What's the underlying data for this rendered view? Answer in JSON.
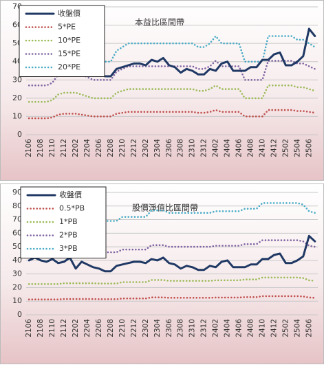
{
  "chart_data": [
    {
      "type": "line",
      "annotation": "本益比區間帶",
      "categories": [
        "2106",
        null,
        "2108",
        null,
        "2110",
        null,
        "2112",
        null,
        "2202",
        null,
        "2204",
        null,
        "2206",
        null,
        "2208",
        null,
        "2210",
        null,
        "2212",
        null,
        "2302",
        null,
        "2304",
        null,
        "2306",
        null,
        "2308",
        null,
        "2310",
        null,
        "2312",
        null,
        "2402",
        null,
        "2404",
        null,
        "2406",
        null,
        "2408",
        null,
        "2410",
        null,
        "2412",
        null,
        "2502",
        null,
        "2504",
        null,
        "2506",
        null
      ],
      "ylim": [
        0,
        70
      ],
      "yticks": [
        0,
        10,
        20,
        30,
        40,
        50,
        60,
        70
      ],
      "grid": true,
      "legend": "upper left",
      "series": [
        {
          "name": "收盤價",
          "color": "#1f3864",
          "linestyle": "solid",
          "values": [
            40,
            42,
            40,
            39,
            41,
            38,
            39,
            42,
            34,
            39,
            37,
            35,
            34,
            32,
            32,
            36,
            37,
            38,
            39,
            39,
            38,
            41,
            40,
            42,
            38,
            37,
            34,
            36,
            35,
            33,
            33,
            36,
            35,
            39,
            40,
            35,
            35,
            35,
            37,
            37,
            41,
            41,
            44,
            45,
            38,
            38,
            40,
            43,
            58,
            54
          ]
        },
        {
          "name": "5*PE",
          "color": "#c0504d",
          "linestyle": "dotted",
          "values": [
            9,
            9,
            9,
            9,
            9.5,
            11,
            11.5,
            11.5,
            11.5,
            11,
            10.5,
            10,
            10,
            10,
            10,
            11.5,
            12,
            12.5,
            12.5,
            12.5,
            12.5,
            12.5,
            12.5,
            12.5,
            12.5,
            12.5,
            12.5,
            12.5,
            12.5,
            12,
            12,
            12.5,
            13.5,
            12.5,
            12.5,
            12.5,
            12.5,
            10,
            10,
            10,
            10,
            13.5,
            13.5,
            13.5,
            13.5,
            13.5,
            13,
            13,
            12.5,
            12
          ]
        },
        {
          "name": "10*PE",
          "color": "#9bbb59",
          "linestyle": "dotted",
          "values": [
            18,
            18,
            18,
            18,
            19,
            22,
            23,
            23,
            23,
            22,
            21,
            20,
            20,
            20,
            20,
            23,
            24,
            25,
            25,
            25,
            25,
            25,
            25,
            25,
            25,
            25,
            25,
            25,
            25,
            24,
            24,
            25,
            27,
            25,
            25,
            25,
            25,
            20,
            20,
            20,
            20,
            27,
            27,
            27,
            27,
            27,
            26,
            26,
            25,
            24
          ]
        },
        {
          "name": "15*PE",
          "color": "#8064a2",
          "linestyle": "dotted",
          "values": [
            27,
            27,
            27,
            27,
            28.5,
            33,
            34.5,
            34.5,
            34.5,
            33,
            31.5,
            30,
            30,
            30,
            30,
            34.5,
            36,
            37.5,
            37.5,
            37.5,
            37.5,
            37.5,
            37.5,
            37.5,
            37.5,
            37.5,
            37.5,
            37.5,
            37.5,
            36,
            36,
            37.5,
            40.5,
            37.5,
            37.5,
            37.5,
            37.5,
            30,
            30,
            30,
            30,
            40.5,
            40.5,
            40.5,
            40.5,
            40.5,
            39,
            39,
            37.5,
            36
          ]
        },
        {
          "name": "20*PE",
          "color": "#4bacc6",
          "linestyle": "dotted",
          "values": [
            36,
            36,
            36,
            36,
            38,
            44,
            46,
            46,
            46,
            44,
            42,
            40,
            40,
            40,
            40,
            46,
            48,
            50,
            50,
            50,
            50,
            50,
            50,
            50,
            50,
            50,
            50,
            50,
            50,
            48,
            48,
            50,
            54,
            50,
            50,
            50,
            50,
            40,
            40,
            40,
            40,
            54,
            54,
            54,
            54,
            54,
            52,
            52,
            50,
            48
          ]
        }
      ]
    },
    {
      "type": "line",
      "annotation": "股價淨值比區間帶",
      "categories": [
        "2106",
        null,
        "2108",
        null,
        "2110",
        null,
        "2112",
        null,
        "2202",
        null,
        "2204",
        null,
        "2206",
        null,
        "2208",
        null,
        "2210",
        null,
        "2212",
        null,
        "2302",
        null,
        "2304",
        null,
        "2306",
        null,
        "2308",
        null,
        "2310",
        null,
        "2312",
        null,
        "2402",
        null,
        "2404",
        null,
        "2406",
        null,
        "2408",
        null,
        "2410",
        null,
        "2412",
        null,
        "2502",
        null,
        "2504",
        null,
        "2506",
        null
      ],
      "ylim": [
        0,
        90
      ],
      "yticks": [
        0,
        10,
        20,
        30,
        40,
        50,
        60,
        70,
        80,
        90
      ],
      "grid": true,
      "legend": "upper left",
      "series": [
        {
          "name": "收盤價",
          "color": "#1f3864",
          "linestyle": "solid",
          "values": [
            40,
            42,
            40,
            39,
            41,
            38,
            39,
            42,
            34,
            39,
            37,
            35,
            34,
            32,
            32,
            36,
            37,
            38,
            39,
            39,
            38,
            41,
            40,
            42,
            38,
            37,
            34,
            36,
            35,
            33,
            33,
            36,
            35,
            39,
            40,
            35,
            35,
            35,
            37,
            37,
            41,
            41,
            44,
            45,
            38,
            38,
            40,
            43,
            58,
            54
          ]
        },
        {
          "name": "0.5*PB",
          "color": "#c0504d",
          "linestyle": "dotted",
          "values": [
            11.3,
            11.3,
            11.3,
            11.3,
            11.3,
            11.3,
            11.6,
            11.6,
            11.6,
            11.6,
            11.6,
            11.6,
            11.5,
            11.5,
            11.5,
            11.5,
            12,
            12,
            12,
            12,
            12,
            12.8,
            12.8,
            12.8,
            12.5,
            12.5,
            12.5,
            12.5,
            12.5,
            12.5,
            12.5,
            12.5,
            12.7,
            12.7,
            12.7,
            12.7,
            12.7,
            13,
            13,
            13,
            13.7,
            13.7,
            13.7,
            13.7,
            13.7,
            13.7,
            13.7,
            13.5,
            12.7,
            12.5
          ]
        },
        {
          "name": "1*PB",
          "color": "#9bbb59",
          "linestyle": "dotted",
          "values": [
            22.6,
            22.6,
            22.6,
            22.6,
            22.6,
            22.6,
            23.2,
            23.2,
            23.2,
            23.2,
            23.2,
            23.2,
            23,
            23,
            23,
            23,
            24,
            24,
            24,
            24,
            24,
            25.6,
            25.6,
            25.6,
            25,
            25,
            25,
            25,
            25,
            25,
            25,
            25,
            25.4,
            25.4,
            25.4,
            25.4,
            25.4,
            26,
            26,
            26,
            27.4,
            27.4,
            27.4,
            27.4,
            27.4,
            27.4,
            27.4,
            27,
            25.4,
            25
          ]
        },
        {
          "name": "2*PB",
          "color": "#8064a2",
          "linestyle": "dotted",
          "values": [
            45.2,
            45.2,
            45.2,
            45.2,
            45.2,
            45.2,
            46.4,
            46.4,
            46.4,
            46.4,
            46.4,
            46.4,
            46,
            46,
            46,
            46,
            48,
            48,
            48,
            48,
            48,
            51.2,
            51.2,
            51.2,
            50,
            50,
            50,
            50,
            50,
            50,
            50,
            50,
            50.8,
            50.8,
            50.8,
            50.8,
            50.8,
            52,
            52,
            52,
            54.8,
            54.8,
            54.8,
            54.8,
            54.8,
            54.8,
            54.8,
            54,
            50.8,
            50
          ]
        },
        {
          "name": "3*PB",
          "color": "#4bacc6",
          "linestyle": "dotted",
          "values": [
            67.8,
            67.8,
            67.8,
            67.8,
            67.8,
            67.8,
            69.6,
            69.6,
            69.6,
            69.6,
            69.6,
            69.6,
            69,
            69,
            69,
            69,
            72,
            72,
            72,
            72,
            72,
            76.8,
            76.8,
            76.8,
            75,
            75,
            75,
            75,
            75,
            75,
            75,
            75,
            76.2,
            76.2,
            76.2,
            76.2,
            76.2,
            78,
            78,
            78,
            82.2,
            82.2,
            82.2,
            82.2,
            82.2,
            82.2,
            82.2,
            81,
            76.2,
            75
          ]
        }
      ]
    }
  ]
}
